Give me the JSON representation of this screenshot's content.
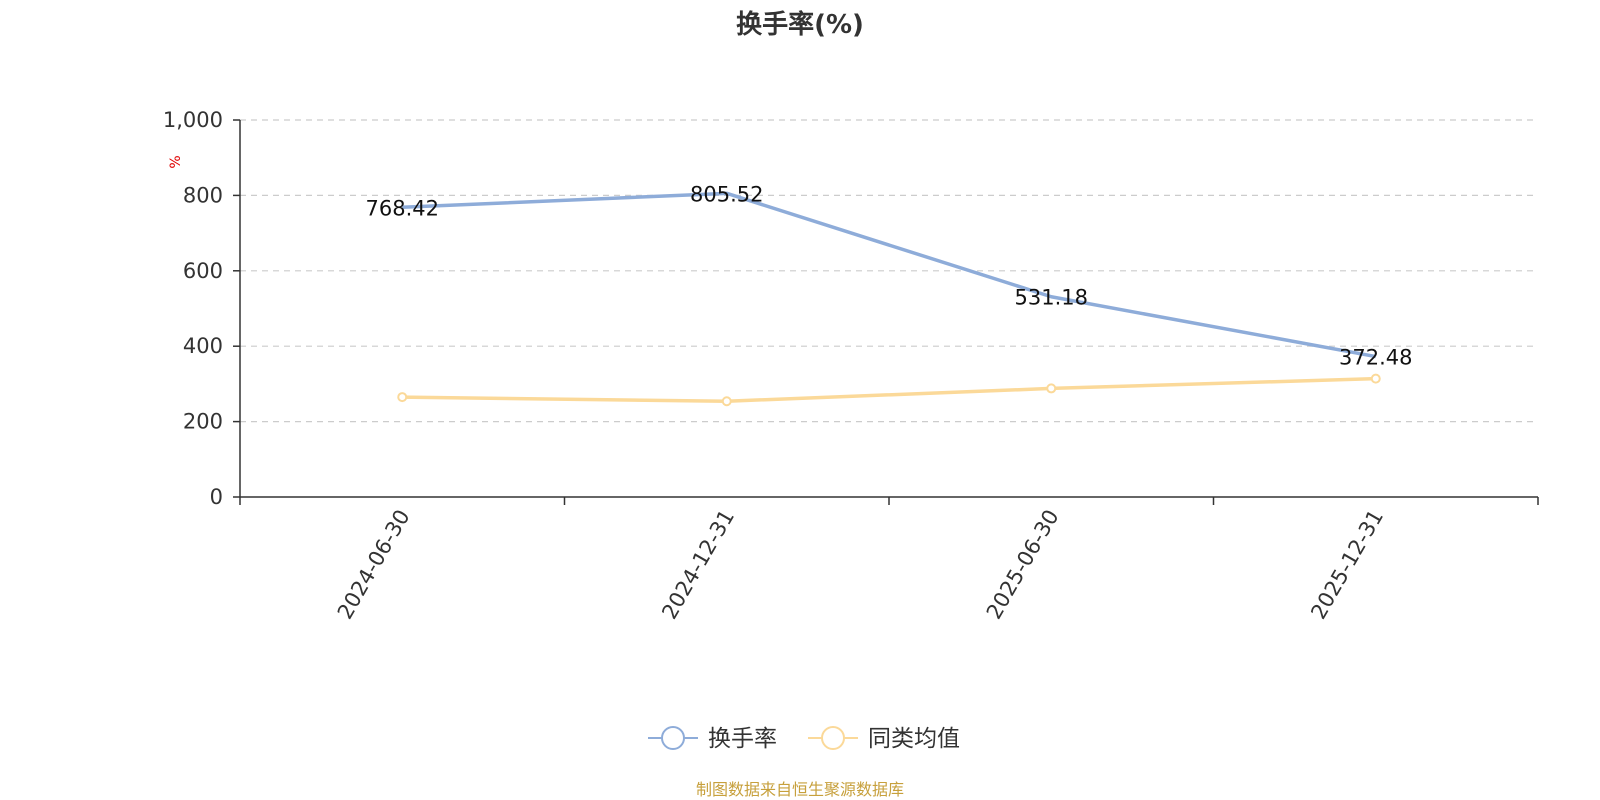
{
  "chart_data": {
    "type": "line",
    "title": "换手率(%)",
    "ylabel": "%",
    "categories": [
      "2024-06-30",
      "2024-12-31",
      "2025-06-30",
      "2025-12-31"
    ],
    "ylim": [
      0,
      1000
    ],
    "yticks": [
      0,
      200,
      400,
      600,
      800,
      1000
    ],
    "ytick_labels": [
      "0",
      "200",
      "400",
      "600",
      "800",
      "1,000"
    ],
    "grid": true,
    "legend_position": "bottom",
    "series": [
      {
        "name": "换手率",
        "values": [
          768.42,
          805.52,
          531.18,
          372.48
        ],
        "data_labels": [
          "768.42",
          "805.52",
          "531.18",
          "372.48"
        ],
        "color": "#8eacd9"
      },
      {
        "name": "同类均值",
        "values": [
          265,
          254,
          288,
          314
        ],
        "color": "#fbd999"
      }
    ]
  },
  "source_note": "制图数据来自恒生聚源数据库"
}
